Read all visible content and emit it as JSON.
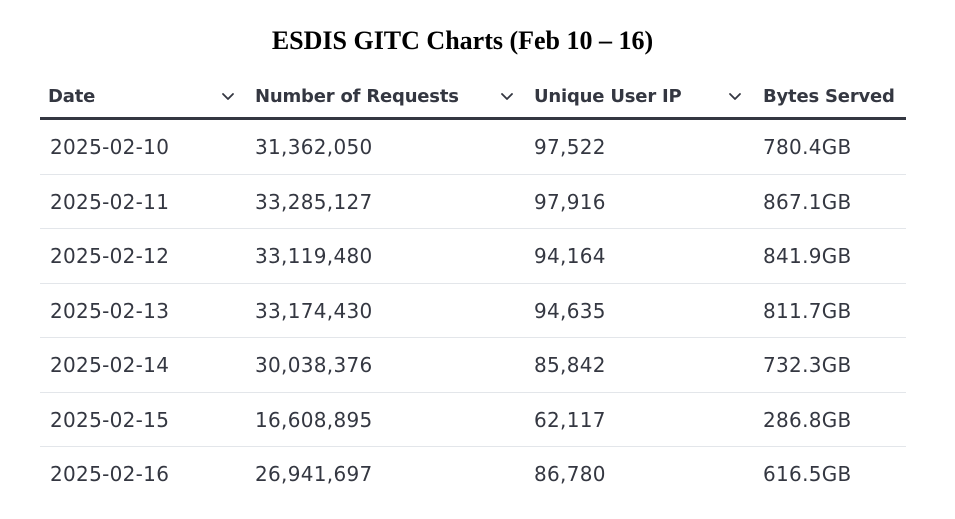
{
  "title": "ESDIS GITC Charts (Feb 10 – 16)",
  "chart_data": {
    "type": "table",
    "title": "ESDIS GITC Charts (Feb 10 – 16)",
    "columns": [
      {
        "label": "Date",
        "icon": "chevron-down-icon"
      },
      {
        "label": "Number of Requests",
        "icon": "chevron-down-icon"
      },
      {
        "label": "Unique User IP",
        "icon": "chevron-down-icon"
      },
      {
        "label": "Bytes Served"
      }
    ],
    "rows": [
      [
        "2025-02-10",
        "31,362,050",
        "97,522",
        "780.4GB"
      ],
      [
        "2025-02-11",
        "33,285,127",
        "97,916",
        "867.1GB"
      ],
      [
        "2025-02-12",
        "33,119,480",
        "94,164",
        "841.9GB"
      ],
      [
        "2025-02-13",
        "33,174,430",
        "94,635",
        "811.7GB"
      ],
      [
        "2025-02-14",
        "30,038,376",
        "85,842",
        "732.3GB"
      ],
      [
        "2025-02-15",
        "16,608,895",
        "62,117",
        "286.8GB"
      ],
      [
        "2025-02-16",
        "26,941,697",
        "86,780",
        "616.5GB"
      ]
    ]
  },
  "colors": {
    "text": "#343741",
    "header_rule": "#343741",
    "row_divider": "#e3e6ea",
    "title": "#000000"
  }
}
